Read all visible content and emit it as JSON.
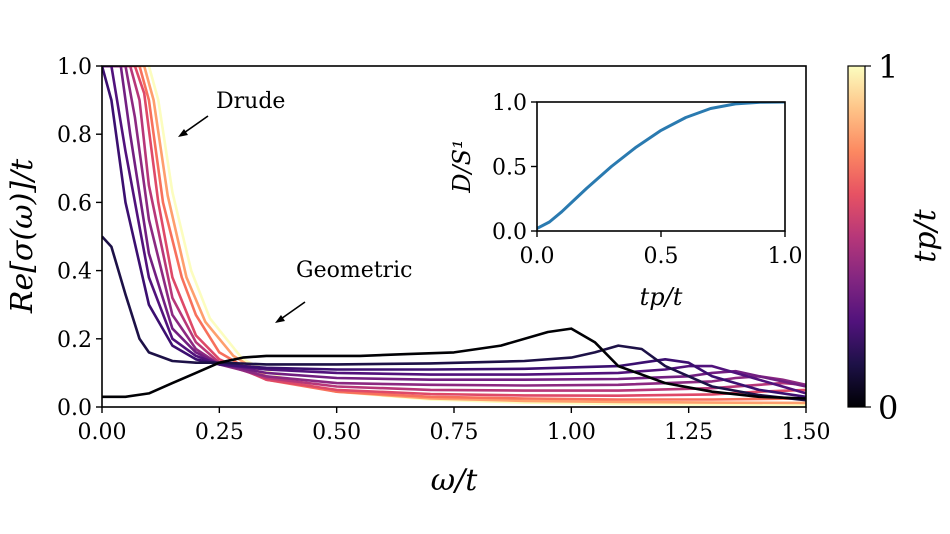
{
  "chart_data": [
    {
      "type": "line",
      "title": "",
      "xlabel": "ω/t",
      "ylabel": "Re[σ(ω)]/t",
      "xlim": [
        0,
        1.5
      ],
      "ylim": [
        0,
        1.0
      ],
      "x_ticks": [
        "0.00",
        "0.25",
        "0.50",
        "0.75",
        "1.00",
        "1.25",
        "1.50"
      ],
      "y_ticks": [
        "0.0",
        "0.2",
        "0.4",
        "0.6",
        "0.8",
        "1.0"
      ],
      "grid": false,
      "series_note": "Family of curves colored by t_p/t (magma colormap, 0 = black, 1 = pale yellow)",
      "series": [
        {
          "tp": 0.0,
          "color": "#000004",
          "x": [
            0,
            0.05,
            0.1,
            0.15,
            0.2,
            0.25,
            0.3,
            0.35,
            0.45,
            0.55,
            0.65,
            0.75,
            0.85,
            0.95,
            1.0,
            1.05,
            1.1,
            1.2,
            1.3,
            1.4,
            1.5
          ],
          "y": [
            0.03,
            0.03,
            0.04,
            0.07,
            0.1,
            0.13,
            0.145,
            0.15,
            0.15,
            0.15,
            0.155,
            0.16,
            0.18,
            0.22,
            0.23,
            0.19,
            0.12,
            0.07,
            0.045,
            0.03,
            0.025
          ]
        },
        {
          "tp": 0.1,
          "color": "#1d1147",
          "x": [
            0,
            0.02,
            0.05,
            0.08,
            0.1,
            0.15,
            0.2,
            0.25,
            0.35,
            0.5,
            0.7,
            0.9,
            1.0,
            1.05,
            1.1,
            1.15,
            1.2,
            1.3,
            1.4,
            1.5
          ],
          "y": [
            0.5,
            0.47,
            0.33,
            0.2,
            0.16,
            0.135,
            0.13,
            0.13,
            0.125,
            0.125,
            0.128,
            0.135,
            0.145,
            0.16,
            0.18,
            0.17,
            0.12,
            0.06,
            0.035,
            0.02
          ]
        },
        {
          "tp": 0.2,
          "color": "#3b0f70",
          "x": [
            0,
            0.02,
            0.05,
            0.1,
            0.15,
            0.2,
            0.25,
            0.35,
            0.5,
            0.7,
            0.9,
            1.1,
            1.15,
            1.2,
            1.25,
            1.3,
            1.4,
            1.5
          ],
          "y": [
            1.0,
            0.9,
            0.6,
            0.3,
            0.18,
            0.14,
            0.125,
            0.115,
            0.11,
            0.11,
            0.112,
            0.12,
            0.13,
            0.14,
            0.13,
            0.09,
            0.05,
            0.03
          ]
        },
        {
          "tp": 0.3,
          "color": "#51127c",
          "x": [
            0,
            0.02,
            0.05,
            0.1,
            0.15,
            0.2,
            0.25,
            0.35,
            0.5,
            0.7,
            0.9,
            1.1,
            1.2,
            1.25,
            1.3,
            1.35,
            1.45,
            1.5
          ],
          "y": [
            1.0,
            1.0,
            0.75,
            0.38,
            0.2,
            0.15,
            0.125,
            0.11,
            0.1,
            0.095,
            0.095,
            0.1,
            0.11,
            0.12,
            0.12,
            0.1,
            0.06,
            0.04
          ]
        },
        {
          "tp": 0.4,
          "color": "#721f81",
          "x": [
            0,
            0.04,
            0.06,
            0.1,
            0.15,
            0.2,
            0.25,
            0.35,
            0.5,
            0.7,
            0.9,
            1.1,
            1.25,
            1.3,
            1.35,
            1.4,
            1.5
          ],
          "y": [
            1.0,
            1.0,
            0.8,
            0.45,
            0.23,
            0.16,
            0.125,
            0.1,
            0.085,
            0.08,
            0.08,
            0.082,
            0.09,
            0.1,
            0.105,
            0.09,
            0.06
          ]
        },
        {
          "tp": 0.5,
          "color": "#8c2981",
          "x": [
            0,
            0.05,
            0.07,
            0.1,
            0.15,
            0.2,
            0.25,
            0.35,
            0.5,
            0.7,
            0.9,
            1.1,
            1.3,
            1.35,
            1.4,
            1.45,
            1.5
          ],
          "y": [
            1.0,
            1.0,
            0.85,
            0.55,
            0.27,
            0.17,
            0.125,
            0.09,
            0.07,
            0.065,
            0.063,
            0.065,
            0.075,
            0.085,
            0.09,
            0.08,
            0.065
          ]
        },
        {
          "tp": 0.6,
          "color": "#b73779",
          "x": [
            0,
            0.06,
            0.08,
            0.1,
            0.15,
            0.2,
            0.25,
            0.35,
            0.5,
            0.7,
            0.9,
            1.1,
            1.3,
            1.4,
            1.45,
            1.5
          ],
          "y": [
            1.0,
            1.0,
            0.9,
            0.65,
            0.32,
            0.19,
            0.13,
            0.085,
            0.06,
            0.05,
            0.048,
            0.048,
            0.055,
            0.065,
            0.07,
            0.065
          ]
        },
        {
          "tp": 0.7,
          "color": "#de4968",
          "x": [
            0,
            0.07,
            0.09,
            0.12,
            0.15,
            0.2,
            0.25,
            0.35,
            0.5,
            0.7,
            0.9,
            1.1,
            1.3,
            1.4,
            1.5
          ],
          "y": [
            1.0,
            1.0,
            0.92,
            0.6,
            0.38,
            0.21,
            0.14,
            0.08,
            0.05,
            0.038,
            0.034,
            0.033,
            0.037,
            0.045,
            0.05
          ]
        },
        {
          "tp": 0.8,
          "color": "#f7705c",
          "x": [
            0,
            0.08,
            0.1,
            0.13,
            0.17,
            0.2,
            0.25,
            0.35,
            0.5,
            0.7,
            0.9,
            1.1,
            1.3,
            1.5
          ],
          "y": [
            1.0,
            1.0,
            0.9,
            0.6,
            0.38,
            0.27,
            0.16,
            0.08,
            0.045,
            0.03,
            0.025,
            0.022,
            0.022,
            0.025
          ]
        },
        {
          "tp": 0.9,
          "color": "#fe9f6d",
          "x": [
            0,
            0.09,
            0.11,
            0.14,
            0.18,
            0.22,
            0.28,
            0.35,
            0.5,
            0.7,
            0.9,
            1.1,
            1.3,
            1.5
          ],
          "y": [
            1.0,
            1.0,
            0.9,
            0.62,
            0.38,
            0.25,
            0.15,
            0.09,
            0.045,
            0.025,
            0.018,
            0.015,
            0.013,
            0.012
          ]
        },
        {
          "tp": 1.0,
          "color": "#fcfdbf",
          "x": [
            0,
            0.1,
            0.12,
            0.15,
            0.19,
            0.23,
            0.3,
            0.4,
            0.5,
            0.7,
            0.9,
            1.1,
            1.3,
            1.5
          ],
          "y": [
            1.0,
            1.0,
            0.9,
            0.63,
            0.4,
            0.26,
            0.14,
            0.075,
            0.045,
            0.022,
            0.013,
            0.009,
            0.007,
            0.006
          ]
        }
      ],
      "annotations": [
        {
          "text": "Drude",
          "arrow_to": [
            0.16,
            0.8
          ]
        },
        {
          "text": "Geometric",
          "arrow_to": [
            0.37,
            0.25
          ]
        }
      ]
    },
    {
      "type": "line",
      "title": "",
      "xlabel": "tp/t",
      "ylabel": "D/S¹",
      "xlim": [
        0,
        1.0
      ],
      "ylim": [
        0,
        1.0
      ],
      "x_ticks": [
        "0.0",
        "0.5",
        "1.0"
      ],
      "y_ticks": [
        "0.0",
        "0.5",
        "1.0"
      ],
      "series": [
        {
          "color": "#2a7ab0",
          "x": [
            0,
            0.05,
            0.1,
            0.15,
            0.2,
            0.3,
            0.4,
            0.5,
            0.6,
            0.7,
            0.8,
            0.9,
            1.0
          ],
          "y": [
            0.02,
            0.07,
            0.15,
            0.24,
            0.33,
            0.5,
            0.65,
            0.78,
            0.88,
            0.95,
            0.985,
            0.998,
            1.0
          ]
        }
      ]
    },
    {
      "type": "colorbar",
      "label": "tp/t",
      "ticks": [
        "0",
        "1"
      ],
      "colormap": "magma",
      "colors": [
        "#000004",
        "#1d1147",
        "#51127c",
        "#832681",
        "#b73779",
        "#e75263",
        "#fc8961",
        "#fec488",
        "#fcfdbf"
      ]
    }
  ]
}
